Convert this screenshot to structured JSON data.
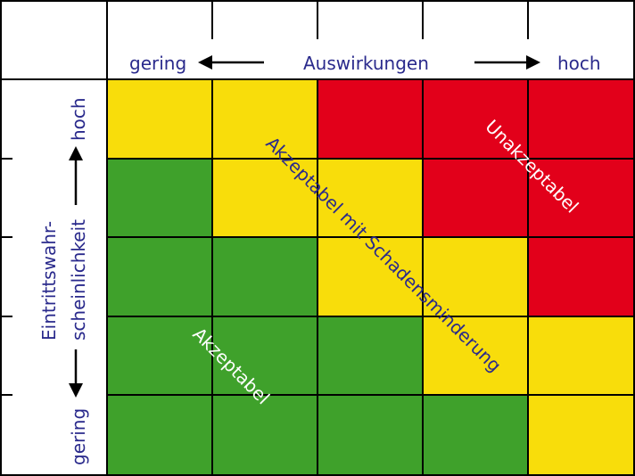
{
  "header": {
    "low": "gering",
    "title": "Auswirkungen",
    "high": "hoch"
  },
  "side": {
    "high": "hoch",
    "title_line1": "Eintrittswahr-",
    "title_line2": "scheinlichkeit",
    "low": "gering"
  },
  "zones": {
    "acceptable": "Akzeptabel",
    "mitigation": "Akzeptabel mit Schadensminderung",
    "unacceptable": "Unakzeptabel"
  },
  "colors": {
    "green": "#3fa12b",
    "yellow": "#f8dd0b",
    "red": "#e2001a",
    "label_blue": "#2a2a8c",
    "grid": "#000000"
  },
  "matrix": [
    [
      "yellow",
      "yellow",
      "red",
      "red",
      "red"
    ],
    [
      "green",
      "yellow",
      "yellow",
      "red",
      "red"
    ],
    [
      "green",
      "green",
      "yellow",
      "yellow",
      "red"
    ],
    [
      "green",
      "green",
      "green",
      "yellow",
      "yellow"
    ],
    [
      "green",
      "green",
      "green",
      "green",
      "yellow"
    ]
  ]
}
